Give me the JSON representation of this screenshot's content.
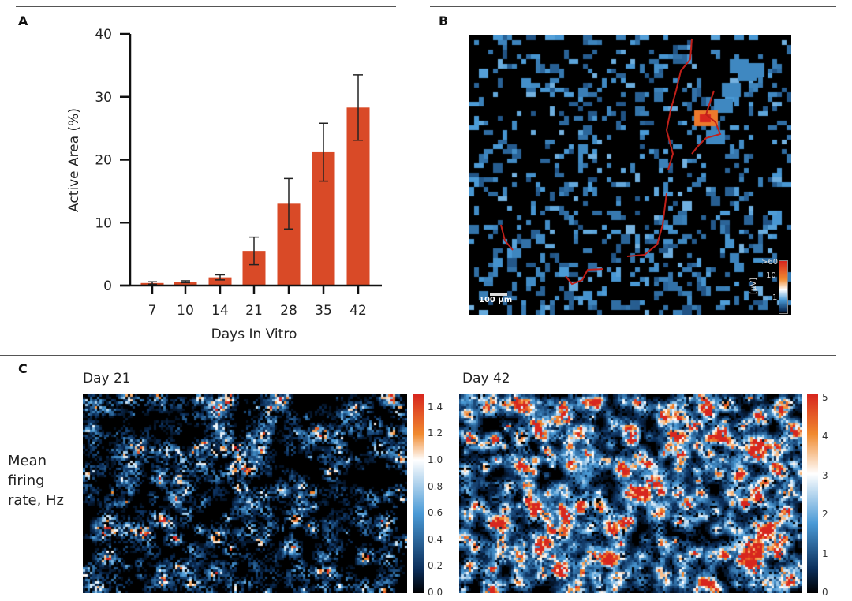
{
  "panels": {
    "a": "A",
    "b": "B",
    "c": "C"
  },
  "chart_data": [
    {
      "type": "bar",
      "panel": "A",
      "categories": [
        "7",
        "10",
        "14",
        "21",
        "28",
        "35",
        "42"
      ],
      "values": [
        0.4,
        0.6,
        1.3,
        5.5,
        13.0,
        21.2,
        28.3
      ],
      "errors": [
        0.2,
        0.15,
        0.4,
        2.2,
        4.0,
        4.6,
        5.2
      ],
      "xlabel": "Days In Vitro",
      "ylabel": "Active Area (%)",
      "ylim": [
        0,
        40
      ],
      "yticks": [
        "0",
        "10",
        "20",
        "30",
        "40"
      ],
      "bar_color": "#d94a27",
      "grid": false
    },
    {
      "type": "heatmap",
      "panel": "B",
      "scale_bar": "100 µm",
      "colorbar_label": "[µV]",
      "colorbar_ticks": [
        ">60",
        "10",
        "1"
      ],
      "trace_color": "#c0201a"
    },
    {
      "type": "heatmap",
      "panel": "C",
      "title": "Day 21",
      "colorbar_ticks": [
        "1.4",
        "1.2",
        "1.0",
        "0.8",
        "0.6",
        "0.4",
        "0.2",
        "0.0"
      ],
      "vmax": 1.5
    },
    {
      "type": "heatmap",
      "panel": "C",
      "title": "Day 42",
      "colorbar_ticks": [
        "5",
        "4",
        "3",
        "2",
        "1",
        "0"
      ],
      "vmax": 5.1
    }
  ],
  "row_label_c": "Mean firing rate, Hz",
  "row_label_c_lines": [
    "Mean",
    "firing",
    "rate, Hz"
  ]
}
